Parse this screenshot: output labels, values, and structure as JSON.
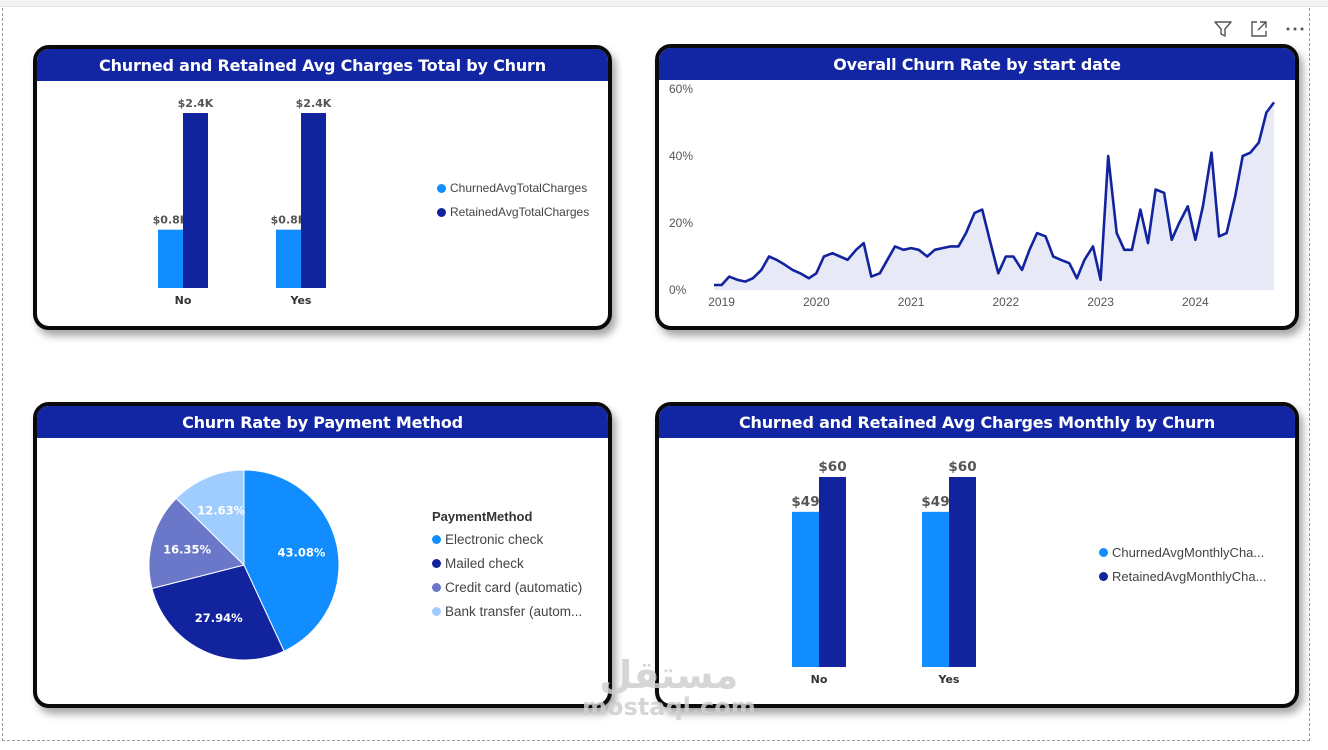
{
  "colors": {
    "churned": "#118dff",
    "retained": "#12239e",
    "header": "#1226a3",
    "credit": "#6b77c9",
    "bank": "#a0cdff",
    "area": "#e8e9f6"
  },
  "toolbar": {
    "icons": [
      "filter-icon",
      "focus-mode-icon",
      "more-options-icon"
    ]
  },
  "watermark": {
    "arabic": "مستقل",
    "latin": "mostaql.com"
  },
  "charts": {
    "total": {
      "title": "Churned and Retained Avg Charges Total by Churn",
      "legend": [
        "ChurnedAvgTotalCharges",
        "RetainedAvgTotalCharges"
      ]
    },
    "rate": {
      "title": "Overall Churn Rate by start date"
    },
    "payment": {
      "title": "Churn Rate by Payment Method",
      "legend_title": "PaymentMethod"
    },
    "monthly": {
      "title": "Churned and Retained Avg Charges Monthly by Churn",
      "legend": [
        "ChurnedAvgMonthlyCha...",
        "RetainedAvgMonthlyCha..."
      ]
    }
  },
  "chart_data": [
    {
      "type": "bar",
      "title": "Churned and Retained Avg Charges Total by Churn",
      "categories": [
        "No",
        "Yes"
      ],
      "series": [
        {
          "name": "ChurnedAvgTotalCharges",
          "values": [
            0.8,
            0.8
          ],
          "labels": [
            "$0.8K",
            "$0.8K"
          ]
        },
        {
          "name": "RetainedAvgTotalCharges",
          "values": [
            2.4,
            2.4
          ],
          "labels": [
            "$2.4K",
            "$2.4K"
          ]
        }
      ],
      "ylim": [
        0,
        2.4
      ]
    },
    {
      "type": "area",
      "title": "Overall Churn Rate by start date",
      "x_ticks": [
        "2019",
        "2020",
        "2021",
        "2022",
        "2023",
        "2024"
      ],
      "y_ticks": [
        "0%",
        "20%",
        "40%",
        "60%"
      ],
      "ylim": [
        0,
        60
      ],
      "x": [
        2018.92,
        2019.0,
        2019.08,
        2019.17,
        2019.25,
        2019.33,
        2019.42,
        2019.5,
        2019.58,
        2019.67,
        2019.75,
        2019.83,
        2019.92,
        2020.0,
        2020.08,
        2020.17,
        2020.25,
        2020.33,
        2020.42,
        2020.5,
        2020.58,
        2020.67,
        2020.75,
        2020.83,
        2020.92,
        2021.0,
        2021.08,
        2021.17,
        2021.25,
        2021.33,
        2021.42,
        2021.5,
        2021.58,
        2021.67,
        2021.75,
        2021.83,
        2021.92,
        2022.0,
        2022.08,
        2022.17,
        2022.25,
        2022.33,
        2022.42,
        2022.5,
        2022.58,
        2022.67,
        2022.75,
        2022.83,
        2022.92,
        2023.0,
        2023.08,
        2023.17,
        2023.25,
        2023.33,
        2023.42,
        2023.5,
        2023.58,
        2023.67,
        2023.75,
        2023.83,
        2023.92,
        2024.0,
        2024.08,
        2024.17,
        2024.25,
        2024.33,
        2024.42,
        2024.5,
        2024.58,
        2024.67,
        2024.75,
        2024.83
      ],
      "values": [
        1.5,
        1.5,
        4,
        3,
        2.5,
        3.5,
        6,
        10,
        9,
        7.5,
        6,
        5,
        3.5,
        5,
        10,
        11,
        10,
        9,
        12,
        14,
        4,
        5,
        9,
        13,
        12,
        12.5,
        12,
        10,
        12,
        12.5,
        13,
        13,
        17,
        23,
        24,
        15,
        5,
        10,
        10,
        6,
        12,
        17,
        16,
        10,
        9,
        8,
        3.5,
        9,
        13,
        3,
        40,
        17,
        12,
        12,
        24,
        14,
        30,
        29,
        15,
        20,
        25,
        15,
        25,
        41,
        16,
        17,
        28,
        40,
        41,
        44,
        53,
        56
      ]
    },
    {
      "type": "pie",
      "title": "Churn Rate by Payment Method",
      "legend_title": "PaymentMethod",
      "categories": [
        "Electronic check",
        "Mailed check",
        "Credit card (automatic)",
        "Bank transfer (autom..."
      ],
      "values": [
        43.08,
        27.94,
        16.35,
        12.63
      ],
      "labels": [
        "43.08%",
        "27.94%",
        "16.35%",
        "12.63%"
      ]
    },
    {
      "type": "bar",
      "title": "Churned and Retained Avg Charges Monthly by Churn",
      "categories": [
        "No",
        "Yes"
      ],
      "series": [
        {
          "name": "ChurnedAvgMonthlyCha...",
          "values": [
            49,
            49
          ],
          "labels": [
            "$49",
            "$49"
          ]
        },
        {
          "name": "RetainedAvgMonthlyCha...",
          "values": [
            60,
            60
          ],
          "labels": [
            "$60",
            "$60"
          ]
        }
      ],
      "ylim": [
        0,
        60
      ]
    }
  ]
}
